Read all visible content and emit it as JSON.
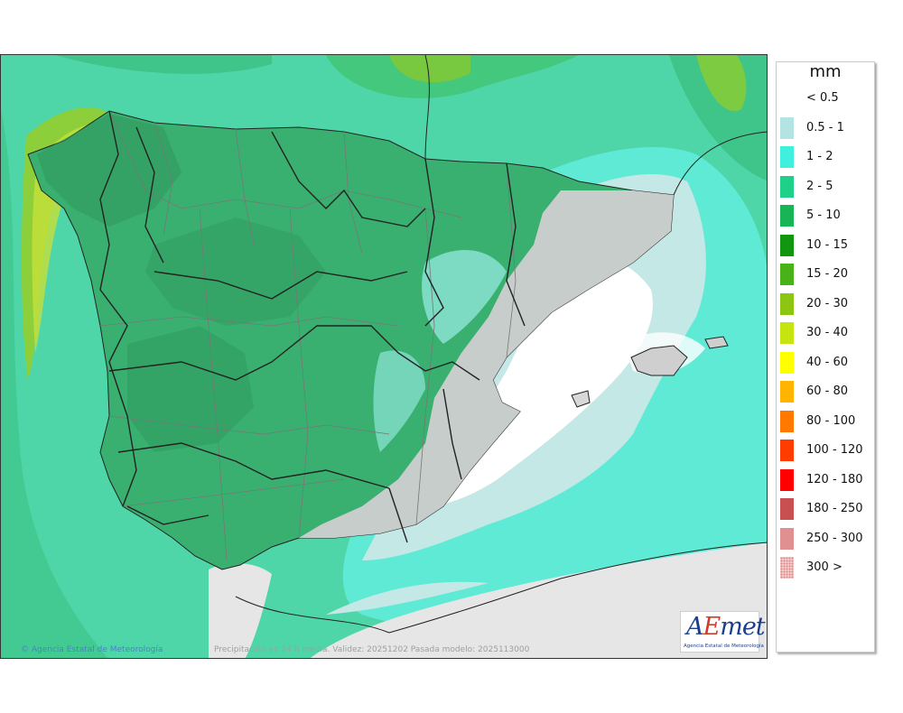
{
  "map": {
    "credit": "Agencia Estatal de Meteorología",
    "validity": "Precipitación en 24 h media. Validez: 20251202 Pasada modelo: 2025113000",
    "logo": {
      "word_a": "A",
      "word_e": "E",
      "word_rest": "met",
      "subtitle": "Agencia Estatal de Meteorología"
    }
  },
  "legend": {
    "unit": "mm",
    "items": [
      {
        "label": "< 0.5",
        "color": "#ffffff"
      },
      {
        "label": "0.5 - 1",
        "color": "#b3e3e3"
      },
      {
        "label": "1 - 2",
        "color": "#3ff0de"
      },
      {
        "label": "2 - 5",
        "color": "#1fd08a"
      },
      {
        "label": "5 - 10",
        "color": "#18b456"
      },
      {
        "label": "10 - 15",
        "color": "#10960f"
      },
      {
        "label": "15 - 20",
        "color": "#49b21a"
      },
      {
        "label": "20 - 30",
        "color": "#8cc612"
      },
      {
        "label": "30 - 40",
        "color": "#c6e40f"
      },
      {
        "label": "40 - 60",
        "color": "#ffff00"
      },
      {
        "label": "60 - 80",
        "color": "#ffb400"
      },
      {
        "label": "80 - 100",
        "color": "#ff7800"
      },
      {
        "label": "100 - 120",
        "color": "#ff3c00"
      },
      {
        "label": "120 - 180",
        "color": "#ff0000"
      },
      {
        "label": "180 - 250",
        "color": "#c85050"
      },
      {
        "label": "250 - 300",
        "color": "#e09090"
      },
      {
        "label": "300 >",
        "color": "#f3c8c8"
      }
    ]
  }
}
